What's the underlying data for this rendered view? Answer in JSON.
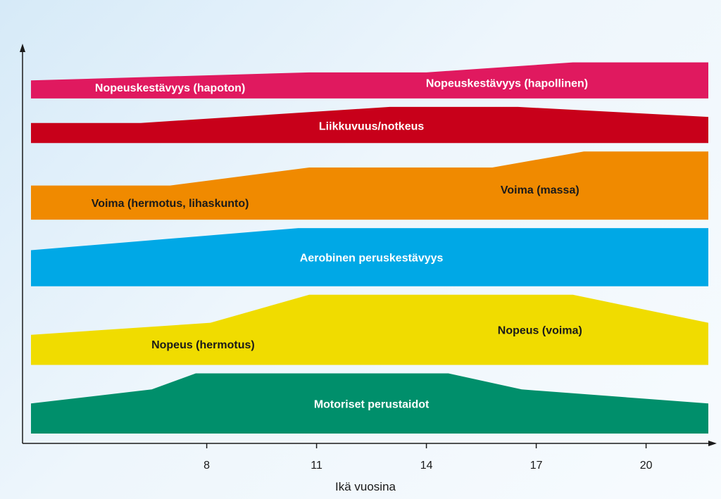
{
  "chart_data": {
    "type": "area",
    "xlabel": "Ikä vuosina",
    "x_ticks": [
      8,
      11,
      14,
      17,
      20
    ],
    "xlim": [
      3.2,
      21.7
    ],
    "bands": [
      {
        "key": "nopeuskestavyys",
        "color": "#e0195f",
        "thickness": [
          [
            3.2,
            0.45
          ],
          [
            10.8,
            0.65
          ],
          [
            14.0,
            0.65
          ],
          [
            18.0,
            0.9
          ],
          [
            21.7,
            0.9
          ]
        ],
        "labels": [
          {
            "text": "Nopeuskestävyys (hapoton)",
            "x": 7.0,
            "dark": false
          },
          {
            "text": "Nopeuskestävyys (hapollinen)",
            "x": 16.2,
            "dark": false
          }
        ]
      },
      {
        "key": "liikkuvuus",
        "color": "#c8001a",
        "thickness": [
          [
            3.2,
            0.5
          ],
          [
            6.2,
            0.5
          ],
          [
            13.0,
            0.9
          ],
          [
            16.5,
            0.9
          ],
          [
            21.7,
            0.65
          ]
        ],
        "labels": [
          {
            "text": "Liikkuvuus/notkeus",
            "x": 12.5,
            "dark": false
          }
        ]
      },
      {
        "key": "voima",
        "color": "#f08a00",
        "thickness": [
          [
            3.2,
            0.85
          ],
          [
            7.0,
            0.85
          ],
          [
            10.8,
            1.3
          ],
          [
            15.8,
            1.3
          ],
          [
            18.3,
            1.7
          ],
          [
            21.7,
            1.7
          ]
        ],
        "labels": [
          {
            "text": "Voima (hermotus, lihaskunto)",
            "x": 7.0,
            "dark": true
          },
          {
            "text": "Voima (massa)",
            "x": 17.1,
            "dark": true
          }
        ]
      },
      {
        "key": "aerobinen",
        "color": "#00a8e6",
        "thickness": [
          [
            3.2,
            0.9
          ],
          [
            10.5,
            1.45
          ],
          [
            21.7,
            1.45
          ]
        ],
        "labels": [
          {
            "text": "Aerobinen peruskestävyys",
            "x": 12.5,
            "dark": false
          }
        ]
      },
      {
        "key": "nopeus",
        "color": "#f0dc00",
        "thickness": [
          [
            3.2,
            0.75
          ],
          [
            8.1,
            1.05
          ],
          [
            10.8,
            1.75
          ],
          [
            18.0,
            1.75
          ],
          [
            21.7,
            1.05
          ]
        ],
        "labels": [
          {
            "text": "Nopeus (hermotus)",
            "x": 7.9,
            "dark": true
          },
          {
            "text": "Nopeus (voima)",
            "x": 17.1,
            "dark": true
          }
        ]
      },
      {
        "key": "motoriset",
        "color": "#008f6b",
        "thickness": [
          [
            3.2,
            0.75
          ],
          [
            6.5,
            1.1
          ],
          [
            7.7,
            1.5
          ],
          [
            14.6,
            1.5
          ],
          [
            16.6,
            1.1
          ],
          [
            21.7,
            0.75
          ]
        ],
        "labels": [
          {
            "text": "Motoriset perustaidot",
            "x": 12.5,
            "dark": false
          }
        ]
      }
    ]
  }
}
